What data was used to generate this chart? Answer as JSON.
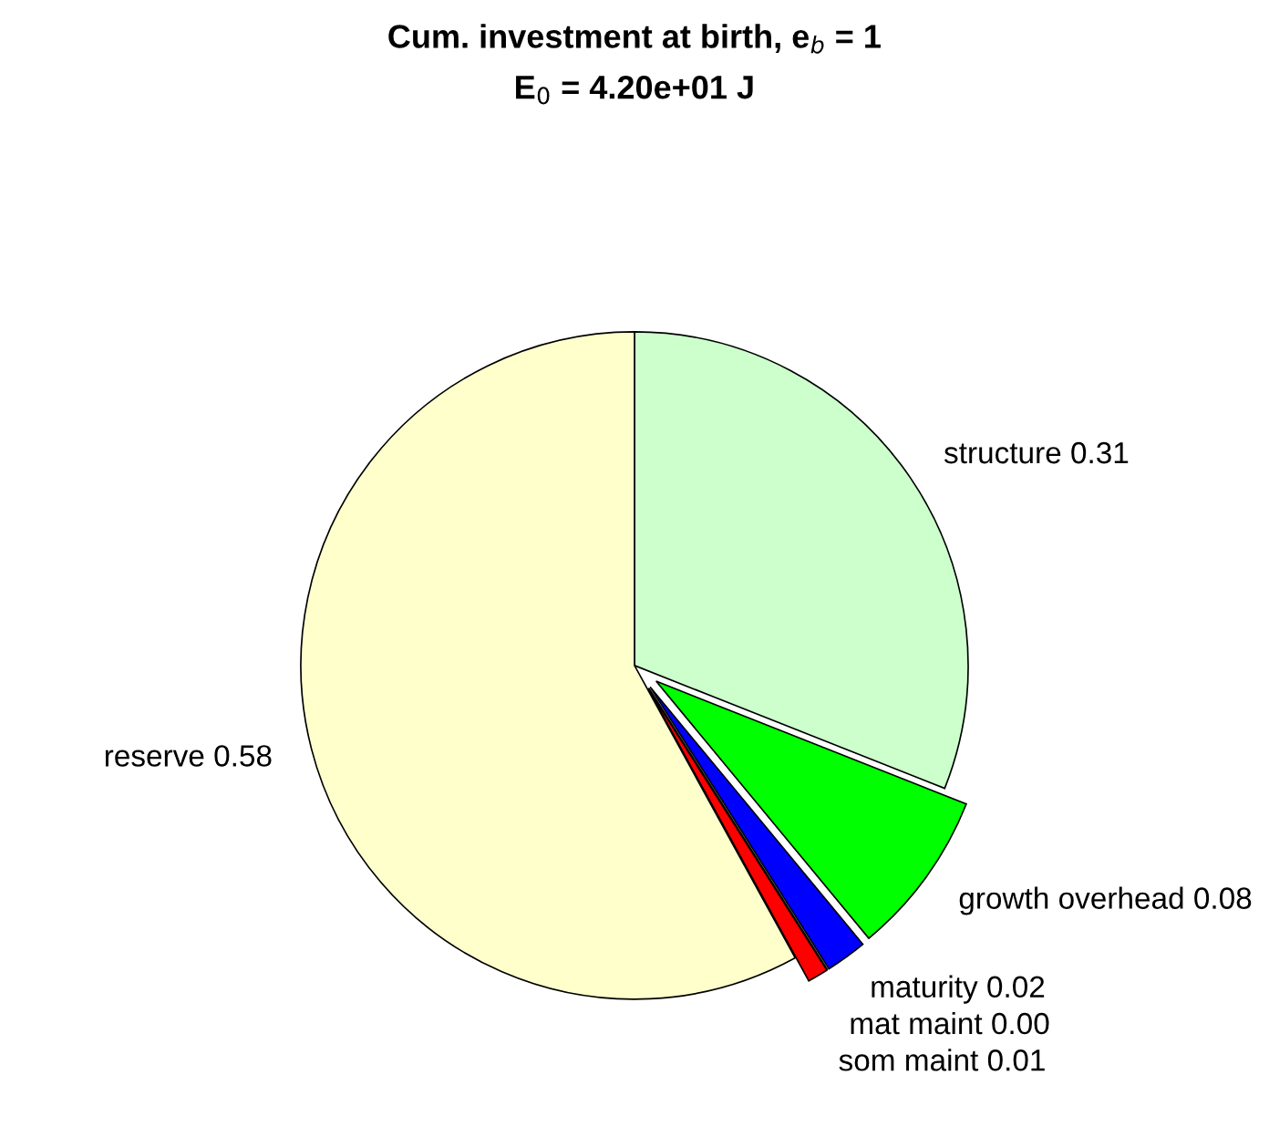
{
  "chart_data": {
    "type": "pie",
    "title": "Cum. investment at birth, e$_{b}$ = 1",
    "subtitle": "E$_{0}$ = 4.20e+01 J",
    "categories": [
      "structure",
      "growth overhead",
      "maturity",
      "mat maint",
      "som maint",
      "reserve"
    ],
    "values": [
      0.31,
      0.08,
      0.02,
      0.0,
      0.01,
      0.58
    ],
    "value_labels": [
      "0.31",
      "0.08",
      "0.02",
      "0.00",
      "0.01",
      "0.58"
    ],
    "colors": [
      "#ccffcc",
      "#00ff00",
      "#0000ff",
      "#000000",
      "#ff0000",
      "#ffffcc"
    ]
  }
}
